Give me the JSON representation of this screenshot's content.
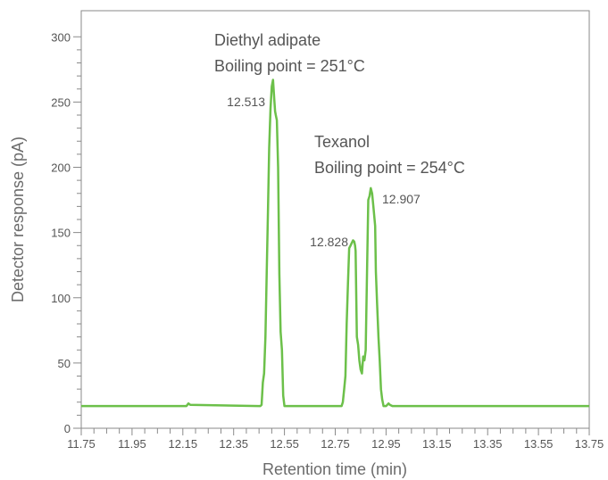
{
  "chart_data": {
    "type": "line",
    "xlabel": "Retention time (min)",
    "ylabel": "Detector response (pA)",
    "xlim": [
      11.75,
      13.75
    ],
    "ylim": [
      0,
      320
    ],
    "x_ticks": [
      "11.75",
      "11.95",
      "12.15",
      "12.35",
      "12.55",
      "12.75",
      "12.95",
      "13.15",
      "13.35",
      "13.55",
      "13.75"
    ],
    "y_ticks": [
      "0",
      "50",
      "100",
      "150",
      "200",
      "250",
      "300"
    ],
    "x_minor_step": 0.05,
    "y_minor_step": 10,
    "grid": false,
    "line_color": "#6cc04a",
    "series": [
      {
        "x": [
          11.75,
          12.164,
          12.172,
          12.179,
          12.45,
          12.455,
          12.46,
          12.465,
          12.47,
          12.475,
          12.48,
          12.485,
          12.49,
          12.495,
          12.5,
          12.505,
          12.51,
          12.513,
          12.516,
          12.52,
          12.525,
          12.53,
          12.535,
          12.54,
          12.545,
          12.55,
          12.556,
          12.77,
          12.775,
          12.78,
          12.785,
          12.79,
          12.795,
          12.8,
          12.805,
          12.81,
          12.815,
          12.82,
          12.825,
          12.828,
          12.83,
          12.835,
          12.84,
          12.845,
          12.85,
          12.855,
          12.86,
          12.865,
          12.87,
          12.875,
          12.88,
          12.885,
          12.89,
          12.895,
          12.9,
          12.907,
          12.91,
          12.915,
          12.92,
          12.925,
          12.93,
          12.935,
          12.94,
          12.945,
          12.95,
          12.955,
          12.96,
          12.965,
          12.975,
          12.985,
          13.0,
          13.75
        ],
        "y": [
          17,
          17,
          19,
          18,
          17,
          17,
          18,
          35,
          42,
          70,
          118,
          165,
          215,
          245,
          262,
          267,
          252,
          243,
          240,
          236,
          200,
          118,
          74,
          60,
          25,
          17,
          17,
          17,
          17,
          20,
          30,
          40,
          80,
          110,
          138,
          140,
          142,
          144,
          143,
          140,
          136,
          70,
          64,
          52,
          45,
          42,
          55,
          52,
          60,
          120,
          175,
          178,
          184,
          180,
          170,
          155,
          120,
          95,
          70,
          52,
          30,
          22,
          17,
          17,
          17,
          18,
          19,
          18,
          17,
          17,
          17,
          17
        ]
      }
    ],
    "annotations": {
      "compound1_name": "Diethyl adipate",
      "compound1_bp": "Boiling point = 251°C",
      "compound2_name": "Texanol",
      "compound2_bp": "Boiling point = 254°C",
      "peak1": "12.513",
      "peak2": "12.828",
      "peak3": "12.907"
    }
  }
}
